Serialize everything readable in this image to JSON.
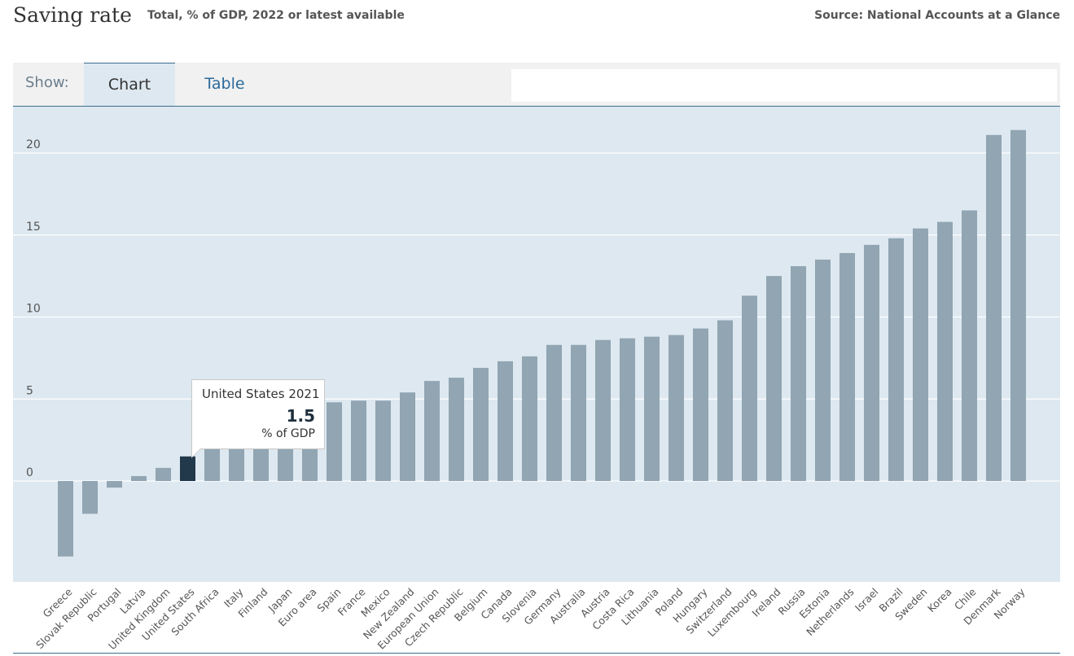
{
  "header": {
    "title": "Saving rate",
    "subtitle": "Total, % of GDP, 2022 or latest available",
    "source": "Source: National Accounts at a Glance"
  },
  "tabs": {
    "show_label": "Show:",
    "chart_label": "Chart",
    "table_label": "Table"
  },
  "tooltip": {
    "title": "United States 2021",
    "value": "1.5",
    "unit": "% of GDP"
  },
  "colors": {
    "bar": "#91a5b2",
    "highlight": "#22384b",
    "plot_bg": "#dde8f0",
    "grid": "#ffffff"
  },
  "chart_data": {
    "type": "bar",
    "title": "Saving rate",
    "subtitle": "Total, % of GDP, 2022 or latest available",
    "ylim": [
      -6.2,
      23.5
    ],
    "yticks": [
      0,
      5,
      10,
      15,
      20
    ],
    "grid": true,
    "highlight": "United States",
    "categories": [
      "Greece",
      "Slovak Republic",
      "Portugal",
      "Latvia",
      "United Kingdom",
      "United States",
      "South Africa",
      "Italy",
      "Finland",
      "Japan",
      "Euro area",
      "Spain",
      "France",
      "Mexico",
      "New Zealand",
      "European Union",
      "Czech Republic",
      "Belgium",
      "Canada",
      "Slovenia",
      "Germany",
      "Australia",
      "Austria",
      "Costa Rica",
      "Lithuania",
      "Poland",
      "Hungary",
      "Switzerland",
      "Luxembourg",
      "Ireland",
      "Russia",
      "Estonia",
      "Netherlands",
      "Israel",
      "Brazil",
      "Sweden",
      "Korea",
      "Chile",
      "Denmark",
      "Norway"
    ],
    "values": [
      -4.6,
      -2.0,
      -0.4,
      0.3,
      0.8,
      1.5,
      2.0,
      2.0,
      2.0,
      2.0,
      2.0,
      4.8,
      4.9,
      4.9,
      5.4,
      6.1,
      6.3,
      6.9,
      7.3,
      7.6,
      8.3,
      8.3,
      8.6,
      8.7,
      8.8,
      8.9,
      9.3,
      9.8,
      11.3,
      12.5,
      13.1,
      13.5,
      13.9,
      14.4,
      14.8,
      15.4,
      15.8,
      16.5,
      21.1,
      21.4
    ]
  }
}
